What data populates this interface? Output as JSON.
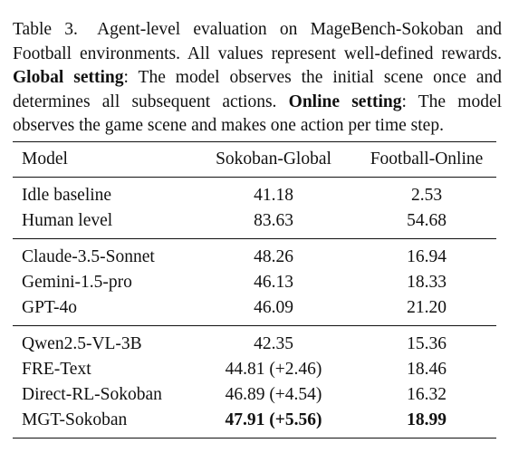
{
  "caption": {
    "label": "Table 3.",
    "text_1": "Agent-level evaluation on MageBench-Sokoban and Football environments. All values represent well-defined rewards.",
    "global_label": "Global setting",
    "global_text": ": The model observes the initial scene once and determines all subsequent actions.",
    "online_label": "Online setting",
    "online_text": ": The model observes the game scene and makes one action per time step."
  },
  "table": {
    "headers": [
      "Model",
      "Sokoban-Global",
      "Football-Online"
    ],
    "groups": [
      {
        "rows": [
          {
            "model": "Idle baseline",
            "sokoban": "41.18",
            "football": "2.53"
          },
          {
            "model": "Human level",
            "sokoban": "83.63",
            "football": "54.68"
          }
        ]
      },
      {
        "rows": [
          {
            "model": "Claude-3.5-Sonnet",
            "sokoban": "48.26",
            "football": "16.94"
          },
          {
            "model": "Gemini-1.5-pro",
            "sokoban": "46.13",
            "football": "18.33"
          },
          {
            "model": "GPT-4o",
            "sokoban": "46.09",
            "football": "21.20"
          }
        ]
      },
      {
        "rows": [
          {
            "model": "Qwen2.5-VL-3B",
            "sokoban": "42.35",
            "football": "15.36"
          },
          {
            "model": "FRE-Text",
            "sokoban": "44.81 (+2.46)",
            "football": "18.46"
          },
          {
            "model": "Direct-RL-Sokoban",
            "sokoban": "46.89 (+4.54)",
            "football": "16.32"
          },
          {
            "model": "MGT-Sokoban",
            "sokoban": "47.91 (+5.56)",
            "football": "18.99"
          }
        ]
      }
    ]
  }
}
